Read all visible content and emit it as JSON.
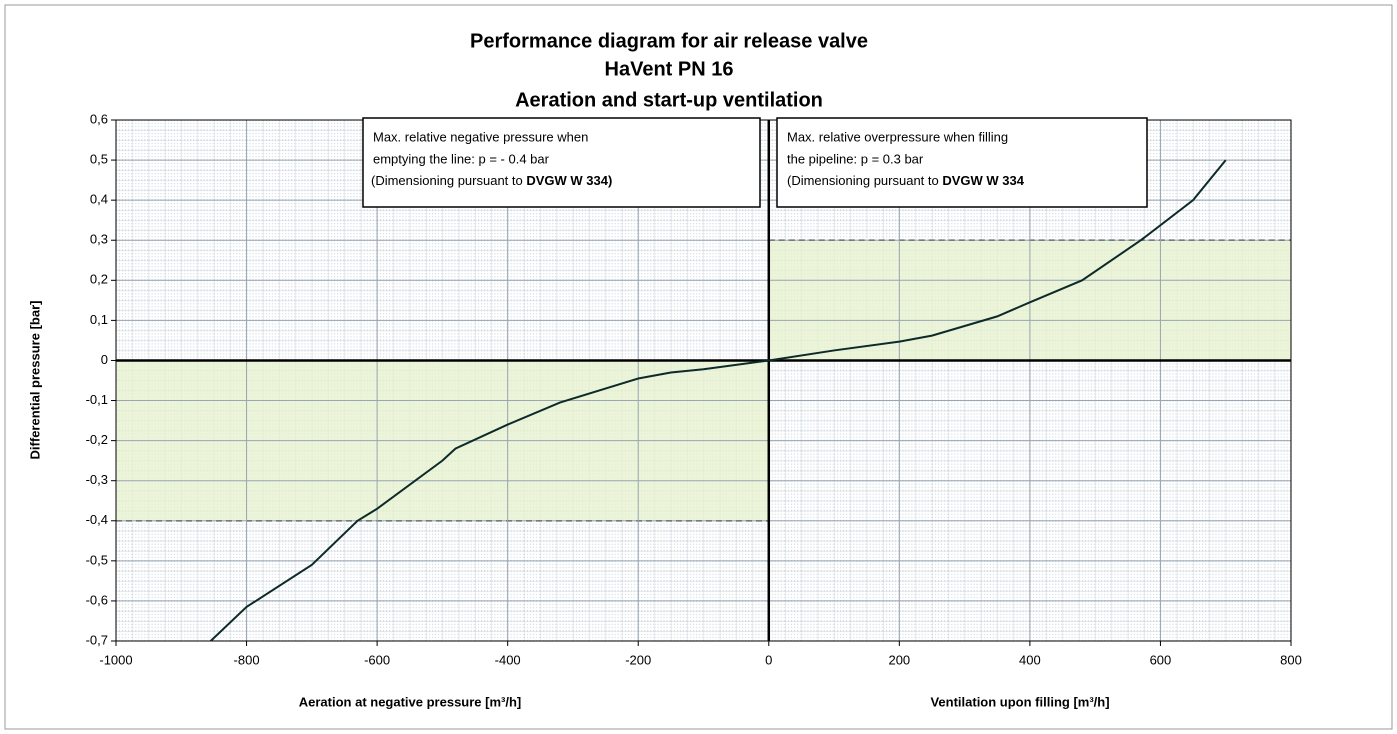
{
  "chart_data": {
    "type": "line",
    "title": [
      "Performance diagram for air release valve",
      "HaVent PN 16",
      "Aeration and start-up ventilation"
    ],
    "y_axis_label": "Differential pressure [bar]",
    "x_axis_labels": [
      "Aeration at negative pressure [m³/h]",
      "Ventilation upon filling [m³/h]"
    ],
    "x": [
      -855,
      -800,
      -700,
      -630,
      -600,
      -500,
      -480,
      -400,
      -320,
      -200,
      -150,
      -100,
      0,
      100,
      200,
      250,
      350,
      400,
      480,
      570,
      650,
      700
    ],
    "series": [
      {
        "color": "#0d2a2a",
        "values": [
          -0.7,
          -0.615,
          -0.51,
          -0.4,
          -0.37,
          -0.25,
          -0.22,
          -0.16,
          -0.105,
          -0.045,
          -0.03,
          -0.022,
          0,
          0.025,
          0.047,
          0.062,
          0.11,
          0.145,
          0.2,
          0.3,
          0.4,
          0.5
        ]
      }
    ],
    "xlim": [
      -1000,
      800
    ],
    "xticks": [
      -1000,
      -800,
      -600,
      -400,
      -200,
      0,
      200,
      400,
      600,
      800
    ],
    "ylim": [
      -0.7,
      0.6
    ],
    "yticks": [
      {
        "value": 0.6,
        "label": "0,6"
      },
      {
        "value": 0.5,
        "label": "0,5"
      },
      {
        "value": 0.4,
        "label": "0,4"
      },
      {
        "value": 0.3,
        "label": "0,3"
      },
      {
        "value": 0.2,
        "label": "0,2"
      },
      {
        "value": 0.1,
        "label": "0,1"
      },
      {
        "value": 0,
        "label": "0"
      },
      {
        "value": -0.1,
        "label": "-0,1"
      },
      {
        "value": -0.2,
        "label": "-0,2"
      },
      {
        "value": -0.3,
        "label": "-0,3"
      },
      {
        "value": -0.4,
        "label": "-0,4"
      },
      {
        "value": -0.5,
        "label": "-0,5"
      },
      {
        "value": -0.6,
        "label": "-0,6"
      },
      {
        "value": -0.7,
        "label": "-0,7"
      }
    ],
    "grid": true,
    "shaded_regions": [
      {
        "xlim": [
          0,
          800
        ],
        "ylim": [
          0,
          0.3
        ],
        "color": "#e6f2cc"
      },
      {
        "xlim": [
          -1000,
          0
        ],
        "ylim": [
          -0.4,
          0
        ],
        "color": "#e6f2cc"
      }
    ],
    "annotations": [
      {
        "lines": [
          "Max. relative negative pressure when",
          "emptying the line: p = -  0.4 bar"
        ],
        "last": {
          "text": "(Dimensioning pursuant to ",
          "bold": "DVGW  W  334)"
        }
      },
      {
        "lines": [
          "Max. relative overpressure when filling",
          "the pipeline: p = 0.3 bar"
        ],
        "last": {
          "text": "(Dimensioning pursuant to ",
          "bold": "DVGW W 334"
        }
      }
    ]
  }
}
